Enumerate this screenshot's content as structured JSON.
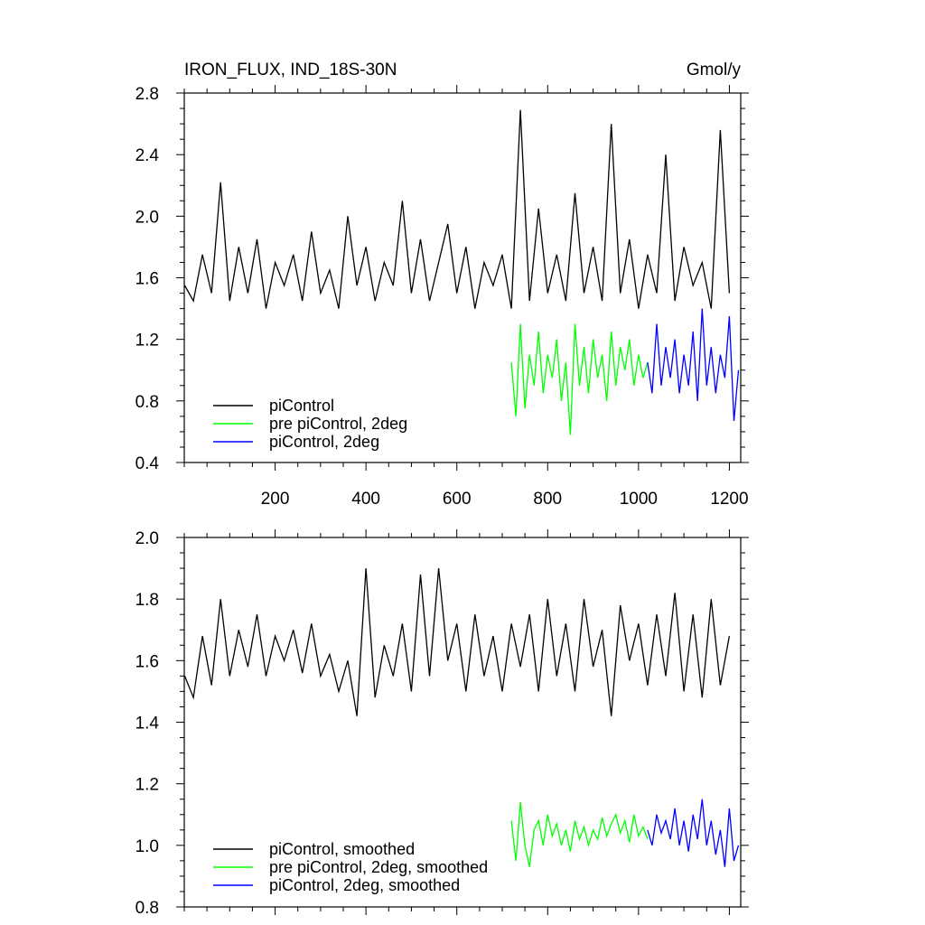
{
  "chart_data": [
    {
      "type": "line",
      "title": "IRON_FLUX, IND_18S-30N",
      "units": "Gmol/y",
      "xlim": [
        0,
        1225
      ],
      "ylim": [
        0.4,
        2.8
      ],
      "x_ticks": [
        200,
        400,
        600,
        800,
        1000,
        1200
      ],
      "x_tick_labels": [
        "200",
        "400",
        "600",
        "800",
        "1000",
        "1200"
      ],
      "y_ticks": [
        0.4,
        0.8,
        1.2,
        1.6,
        2.0,
        2.4,
        2.8
      ],
      "y_tick_labels": [
        "0.4",
        "0.8",
        "1.2",
        "1.6",
        "2.0",
        "2.4",
        "2.8"
      ],
      "legend_position": "bottom-left",
      "series": [
        {
          "name": "piControl",
          "color": "#000000",
          "x": [
            1,
            20,
            40,
            60,
            80,
            100,
            120,
            140,
            160,
            180,
            200,
            220,
            240,
            260,
            280,
            300,
            320,
            340,
            360,
            380,
            400,
            420,
            440,
            460,
            480,
            500,
            520,
            540,
            560,
            580,
            600,
            620,
            640,
            660,
            680,
            700,
            720,
            740,
            760,
            780,
            800,
            820,
            840,
            860,
            880,
            900,
            920,
            940,
            960,
            980,
            1000,
            1020,
            1040,
            1060,
            1080,
            1100,
            1120,
            1140,
            1160,
            1180,
            1200
          ],
          "values": [
            1.55,
            1.45,
            1.75,
            1.5,
            2.22,
            1.45,
            1.8,
            1.5,
            1.85,
            1.4,
            1.7,
            1.55,
            1.75,
            1.45,
            1.9,
            1.5,
            1.65,
            1.4,
            2.0,
            1.55,
            1.8,
            1.45,
            1.7,
            1.55,
            2.1,
            1.5,
            1.85,
            1.45,
            1.7,
            1.95,
            1.5,
            1.8,
            1.4,
            1.7,
            1.55,
            1.75,
            1.4,
            2.69,
            1.45,
            2.05,
            1.5,
            1.75,
            1.45,
            2.15,
            1.5,
            1.8,
            1.45,
            2.6,
            1.5,
            1.85,
            1.4,
            1.75,
            1.5,
            2.4,
            1.45,
            1.8,
            1.55,
            1.7,
            1.4,
            2.56,
            1.5
          ]
        },
        {
          "name": "pre piControl, 2deg",
          "color": "#00ff00",
          "x": [
            720,
            730,
            740,
            750,
            760,
            770,
            780,
            790,
            800,
            810,
            820,
            830,
            840,
            850,
            860,
            870,
            880,
            890,
            900,
            910,
            920,
            930,
            940,
            950,
            960,
            970,
            980,
            990,
            1000,
            1010,
            1020
          ],
          "values": [
            1.05,
            0.7,
            1.3,
            0.75,
            1.1,
            0.9,
            1.25,
            0.85,
            1.1,
            0.95,
            1.2,
            0.8,
            1.05,
            0.58,
            1.3,
            0.9,
            1.15,
            0.85,
            1.2,
            0.95,
            1.1,
            0.8,
            1.25,
            0.9,
            1.15,
            1.0,
            1.2,
            0.9,
            1.1,
            0.95,
            1.05
          ]
        },
        {
          "name": "piControl, 2deg",
          "color": "#0000ff",
          "x": [
            1020,
            1030,
            1040,
            1050,
            1060,
            1070,
            1080,
            1090,
            1100,
            1110,
            1120,
            1130,
            1140,
            1150,
            1160,
            1170,
            1180,
            1190,
            1200,
            1210,
            1220
          ],
          "values": [
            1.05,
            0.85,
            1.3,
            0.9,
            1.15,
            0.95,
            1.2,
            0.85,
            1.1,
            0.9,
            1.25,
            0.8,
            1.4,
            0.9,
            1.15,
            0.85,
            1.1,
            0.95,
            1.35,
            0.67,
            1.0
          ]
        }
      ]
    },
    {
      "type": "line",
      "xlim": [
        0,
        1225
      ],
      "ylim": [
        0.8,
        2.0
      ],
      "x_ticks": [
        200,
        400,
        600,
        800,
        1000,
        1200
      ],
      "y_ticks": [
        0.8,
        1.0,
        1.2,
        1.4,
        1.6,
        1.8,
        2.0
      ],
      "y_tick_labels": [
        "0.8",
        "1.0",
        "1.2",
        "1.4",
        "1.6",
        "1.8",
        "2.0"
      ],
      "legend_position": "bottom-left",
      "series": [
        {
          "name": "piControl, smoothed",
          "color": "#000000",
          "x": [
            1,
            20,
            40,
            60,
            80,
            100,
            120,
            140,
            160,
            180,
            200,
            220,
            240,
            260,
            280,
            300,
            320,
            340,
            360,
            380,
            400,
            420,
            440,
            460,
            480,
            500,
            520,
            540,
            560,
            580,
            600,
            620,
            640,
            660,
            680,
            700,
            720,
            740,
            760,
            780,
            800,
            820,
            840,
            860,
            880,
            900,
            920,
            940,
            960,
            980,
            1000,
            1020,
            1040,
            1060,
            1080,
            1100,
            1120,
            1140,
            1160,
            1180,
            1200
          ],
          "values": [
            1.55,
            1.48,
            1.68,
            1.52,
            1.8,
            1.55,
            1.7,
            1.58,
            1.75,
            1.55,
            1.68,
            1.6,
            1.7,
            1.56,
            1.72,
            1.55,
            1.62,
            1.5,
            1.6,
            1.42,
            1.9,
            1.48,
            1.65,
            1.55,
            1.72,
            1.5,
            1.88,
            1.55,
            1.9,
            1.6,
            1.72,
            1.5,
            1.75,
            1.55,
            1.68,
            1.5,
            1.72,
            1.58,
            1.75,
            1.5,
            1.8,
            1.55,
            1.72,
            1.5,
            1.8,
            1.58,
            1.7,
            1.42,
            1.78,
            1.6,
            1.72,
            1.52,
            1.75,
            1.55,
            1.82,
            1.5,
            1.75,
            1.48,
            1.8,
            1.52,
            1.68
          ]
        },
        {
          "name": "pre piControl, 2deg, smoothed",
          "color": "#00ff00",
          "x": [
            720,
            730,
            740,
            750,
            760,
            770,
            780,
            790,
            800,
            810,
            820,
            830,
            840,
            850,
            860,
            870,
            880,
            890,
            900,
            910,
            920,
            930,
            940,
            950,
            960,
            970,
            980,
            990,
            1000,
            1010,
            1020
          ],
          "values": [
            1.08,
            0.95,
            1.14,
            1.0,
            0.93,
            1.05,
            1.08,
            1.0,
            1.1,
            1.03,
            1.07,
            1.0,
            1.05,
            0.98,
            1.08,
            1.02,
            1.06,
            1.0,
            1.05,
            1.02,
            1.09,
            1.03,
            1.07,
            1.1,
            1.04,
            1.08,
            1.01,
            1.1,
            1.03,
            1.06,
            1.02
          ]
        },
        {
          "name": "piControl, 2deg, smoothed",
          "color": "#0000ff",
          "x": [
            1020,
            1030,
            1040,
            1050,
            1060,
            1070,
            1080,
            1090,
            1100,
            1110,
            1120,
            1130,
            1140,
            1150,
            1160,
            1170,
            1180,
            1190,
            1200,
            1210,
            1220
          ],
          "values": [
            1.05,
            1.0,
            1.1,
            1.04,
            1.08,
            1.02,
            1.12,
            1.0,
            1.08,
            0.98,
            1.1,
            1.02,
            1.15,
            1.0,
            1.08,
            0.97,
            1.05,
            0.93,
            1.12,
            0.95,
            1.0
          ]
        }
      ]
    }
  ]
}
